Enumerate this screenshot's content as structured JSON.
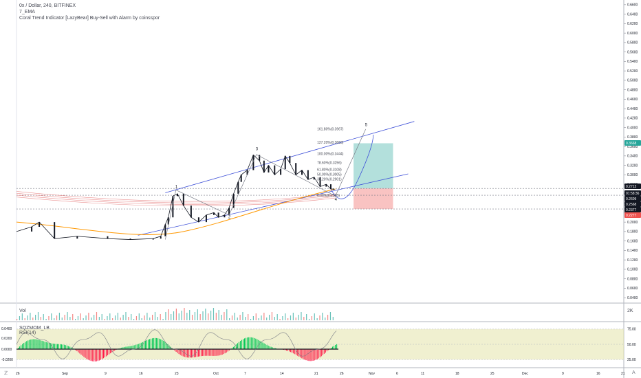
{
  "legend": {
    "symbol_line": "0x / Dollar, 240, BITFINEX",
    "indicator_1": "7_EMA",
    "indicator_2": "Coral Trend Indicator [LazyBear] Buy-Sell with Alarm by coinsspor"
  },
  "panes": {
    "volume_label": "Vol",
    "volume_axis": "2K",
    "momentum_label": "SQZMOM_LB",
    "rsi_label": "RSI(14)"
  },
  "colors": {
    "up": "#26a69a",
    "down": "#ef5350",
    "ema_orange": "#ff9800",
    "coral_red": "#e57373",
    "channel_blue": "#3f51d8",
    "wave_line": "#2a2e39",
    "momentum_green": "#00c853",
    "momentum_red": "#ff1744",
    "rsi_band": "#e6e6b0",
    "target_green": "#26a69a",
    "stop_red": "#ef5350"
  },
  "chart_data": {
    "type": "candlestick",
    "symbol": "0x / Dollar",
    "interval": "240",
    "exchange": "BITFINEX",
    "price_axis_ticks": [
      "0.6600",
      "0.6400",
      "0.6200",
      "0.6000",
      "0.5800",
      "0.5600",
      "0.5400",
      "0.5200",
      "0.5000",
      "0.4800",
      "0.4600",
      "0.4400",
      "0.4200",
      "0.4000",
      "0.3800",
      "0.3600",
      "0.3400",
      "0.3200",
      "0.3000",
      "0.2800",
      "0.2600",
      "0.2400",
      "0.2200",
      "0.2000",
      "0.1800",
      "0.1600",
      "0.1400",
      "0.1200",
      "0.1000",
      "0.0800",
      "0.0600",
      "0.0400"
    ],
    "time_axis_ticks": [
      "26",
      "Sep",
      "9",
      "16",
      "23",
      "Oct",
      "7",
      "14",
      "21",
      "26",
      "Nov",
      "6",
      "11",
      "18",
      "25",
      "Dec",
      "9",
      "16",
      "21"
    ],
    "price_markers": [
      {
        "label": "0.3668",
        "kind": "target"
      },
      {
        "label": "0.2712",
        "kind": "last"
      },
      {
        "label": "01:58:36",
        "kind": "countdown"
      },
      {
        "label": "0.2609",
        "kind": "price"
      },
      {
        "label": "0.2568",
        "kind": "price"
      },
      {
        "label": "0.2377",
        "kind": "price"
      },
      {
        "label": "0.2277",
        "kind": "stop"
      }
    ],
    "fib_levels": [
      {
        "label": "161.80%(0.3967)",
        "value": 0.3967
      },
      {
        "label": "127.20%(0.3683)",
        "value": 0.3683
      },
      {
        "label": "100.00%(0.3444)",
        "value": 0.3444
      },
      {
        "label": "78.60%(0.3256)",
        "value": 0.3256
      },
      {
        "label": "61.80%(0.3108)",
        "value": 0.3108
      },
      {
        "label": "50.00%(0.3005)",
        "value": 0.3005
      },
      {
        "label": "38.20%(0.2901)",
        "value": 0.2901
      },
      {
        "label": "0.00%(0.2565)",
        "value": 0.2565
      }
    ],
    "wave_labels": [
      "1",
      "2",
      "3",
      "4",
      "5"
    ],
    "momentum_axis_ticks": [
      "0.0400",
      "0.0200",
      "0.0000",
      "-0.0200"
    ],
    "rsi_axis_ticks": [
      "75.00",
      "50.00",
      "25.00"
    ],
    "price_path": [
      [
        0,
        0.18
      ],
      [
        10,
        0.19
      ],
      [
        15,
        0.2
      ],
      [
        25,
        0.165
      ],
      [
        40,
        0.17
      ],
      [
        60,
        0.165
      ],
      [
        75,
        0.163
      ],
      [
        90,
        0.165
      ],
      [
        95,
        0.17
      ],
      [
        98,
        0.195
      ],
      [
        100,
        0.21
      ],
      [
        103,
        0.255
      ],
      [
        106,
        0.26
      ],
      [
        110,
        0.235
      ],
      [
        115,
        0.21
      ],
      [
        120,
        0.2
      ],
      [
        125,
        0.215
      ],
      [
        130,
        0.22
      ],
      [
        133,
        0.21
      ],
      [
        137,
        0.215
      ],
      [
        140,
        0.23
      ],
      [
        143,
        0.26
      ],
      [
        146,
        0.285
      ],
      [
        148,
        0.3
      ],
      [
        152,
        0.31
      ],
      [
        156,
        0.342
      ],
      [
        160,
        0.33
      ],
      [
        163,
        0.305
      ],
      [
        166,
        0.32
      ],
      [
        170,
        0.3
      ],
      [
        174,
        0.312
      ],
      [
        177,
        0.34
      ],
      [
        180,
        0.325
      ],
      [
        184,
        0.3
      ],
      [
        188,
        0.31
      ],
      [
        192,
        0.29
      ],
      [
        196,
        0.295
      ],
      [
        200,
        0.275
      ],
      [
        204,
        0.28
      ],
      [
        207,
        0.27
      ],
      [
        209,
        0.27
      ]
    ],
    "waves": [
      {
        "t": 98,
        "v": 0.163
      },
      {
        "t": 105,
        "v": 0.268
      },
      {
        "t": 140,
        "v": 0.215
      },
      {
        "t": 158,
        "v": 0.343
      },
      {
        "t": 210,
        "v": 0.255
      },
      {
        "t": 230,
        "v": 0.3967
      }
    ]
  }
}
